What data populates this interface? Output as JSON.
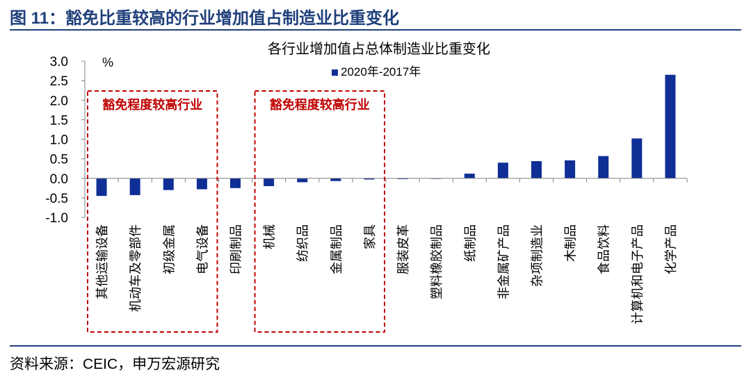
{
  "figure": {
    "title": "图 11：豁免比重较高的行业增加值占制造业比重变化",
    "source": "资料来源：CEIC，申万宏源研究"
  },
  "colors": {
    "bar": "#0f2f96",
    "rule": "#1f3f7a",
    "box": "#c00000"
  },
  "chart_data": {
    "type": "bar",
    "title": "各行业增加值占总体制造业比重变化",
    "unit": "%",
    "categories": [
      "其他运输设备",
      "机动车及零部件",
      "初级金属",
      "电气设备",
      "印刷制品",
      "机械",
      "纺织品",
      "金属制品",
      "家具",
      "服装皮革",
      "塑料橡胶制品",
      "纸制品",
      "非金属矿产品",
      "杂项制造业",
      "木制品",
      "食品饮料",
      "计算机和电子产品",
      "化学产品"
    ],
    "series": [
      {
        "name": "2020年-2017年",
        "values": [
          -0.45,
          -0.43,
          -0.3,
          -0.28,
          -0.25,
          -0.2,
          -0.1,
          -0.07,
          -0.03,
          -0.02,
          0.0,
          0.12,
          0.4,
          0.44,
          0.46,
          0.57,
          1.02,
          2.65
        ]
      }
    ],
    "ylim": [
      -1.0,
      3.0
    ],
    "yticks": [
      "3.0",
      "2.5",
      "2.0",
      "1.5",
      "1.0",
      "0.5",
      "0.0",
      "-0.5",
      "-1.0"
    ],
    "legend_position": "top-center",
    "grid": false,
    "annotations": [
      "豁免程度较高行业",
      "豁免程度较高行业"
    ]
  }
}
